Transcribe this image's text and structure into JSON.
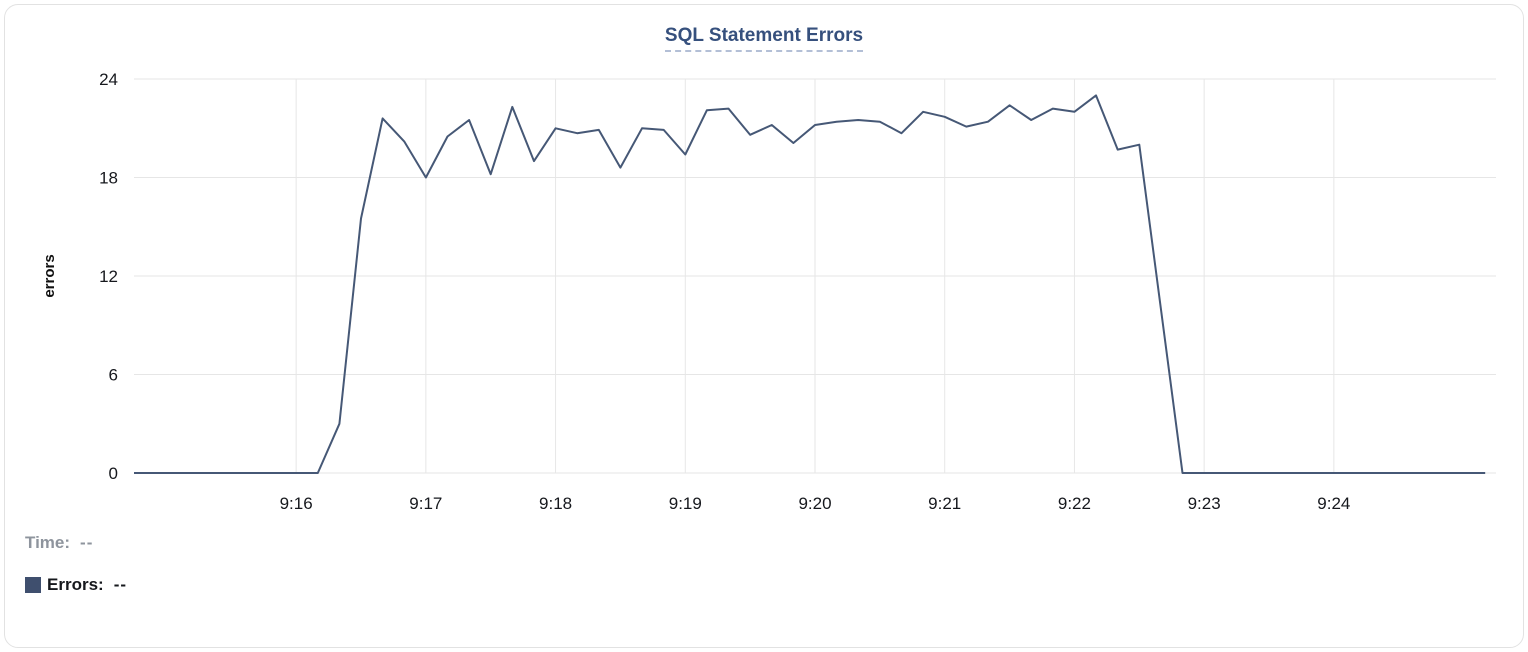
{
  "card": {
    "title": "SQL Statement Errors"
  },
  "footer": {
    "time_label": "Time:",
    "time_value": "--",
    "errors_label": "Errors:",
    "errors_value": "--"
  },
  "colors": {
    "line": "#465876",
    "title": "#36507d",
    "grid": "#e6e6e6",
    "tick_text": "#16181d",
    "swatch": "#3f4f6e",
    "muted_text": "#8e949d"
  },
  "chart_data": {
    "type": "line",
    "title": "SQL Statement Errors",
    "xlabel": "",
    "ylabel": "errors",
    "ylim": [
      0,
      24
    ],
    "yticks": [
      0,
      6,
      12,
      18,
      24
    ],
    "xticks": [
      "9:16",
      "9:17",
      "9:18",
      "9:19",
      "9:20",
      "9:21",
      "9:22",
      "9:23",
      "9:24"
    ],
    "xlim": [
      "9:14:45",
      "9:25:15"
    ],
    "grid": true,
    "legend_position": "bottom-left",
    "series": [
      {
        "name": "Errors",
        "color": "#465876",
        "points": [
          [
            "9:14:45",
            0
          ],
          [
            "9:15:00",
            0
          ],
          [
            "9:15:20",
            0
          ],
          [
            "9:15:40",
            0
          ],
          [
            "9:16:00",
            0
          ],
          [
            "9:16:10",
            0
          ],
          [
            "9:16:20",
            3
          ],
          [
            "9:16:30",
            15.5
          ],
          [
            "9:16:40",
            21.6
          ],
          [
            "9:16:50",
            20.2
          ],
          [
            "9:17:00",
            18
          ],
          [
            "9:17:10",
            20.5
          ],
          [
            "9:17:20",
            21.5
          ],
          [
            "9:17:30",
            18.2
          ],
          [
            "9:17:40",
            22.3
          ],
          [
            "9:17:50",
            19
          ],
          [
            "9:18:00",
            21
          ],
          [
            "9:18:10",
            20.7
          ],
          [
            "9:18:20",
            20.9
          ],
          [
            "9:18:30",
            18.6
          ],
          [
            "9:18:40",
            21
          ],
          [
            "9:18:50",
            20.9
          ],
          [
            "9:19:00",
            19.4
          ],
          [
            "9:19:10",
            22.1
          ],
          [
            "9:19:20",
            22.2
          ],
          [
            "9:19:30",
            20.6
          ],
          [
            "9:19:40",
            21.2
          ],
          [
            "9:19:50",
            20.1
          ],
          [
            "9:20:00",
            21.2
          ],
          [
            "9:20:10",
            21.4
          ],
          [
            "9:20:20",
            21.5
          ],
          [
            "9:20:30",
            21.4
          ],
          [
            "9:20:40",
            20.7
          ],
          [
            "9:20:50",
            22
          ],
          [
            "9:21:00",
            21.7
          ],
          [
            "9:21:10",
            21.1
          ],
          [
            "9:21:20",
            21.4
          ],
          [
            "9:21:30",
            22.4
          ],
          [
            "9:21:40",
            21.5
          ],
          [
            "9:21:50",
            22.2
          ],
          [
            "9:22:00",
            22
          ],
          [
            "9:22:10",
            23
          ],
          [
            "9:22:20",
            19.7
          ],
          [
            "9:22:30",
            20
          ],
          [
            "9:22:50",
            0
          ],
          [
            "9:23:00",
            0
          ],
          [
            "9:23:30",
            0
          ],
          [
            "9:24:00",
            0
          ],
          [
            "9:24:30",
            0
          ],
          [
            "9:25:00",
            0
          ],
          [
            "9:25:10",
            0
          ]
        ]
      }
    ]
  }
}
